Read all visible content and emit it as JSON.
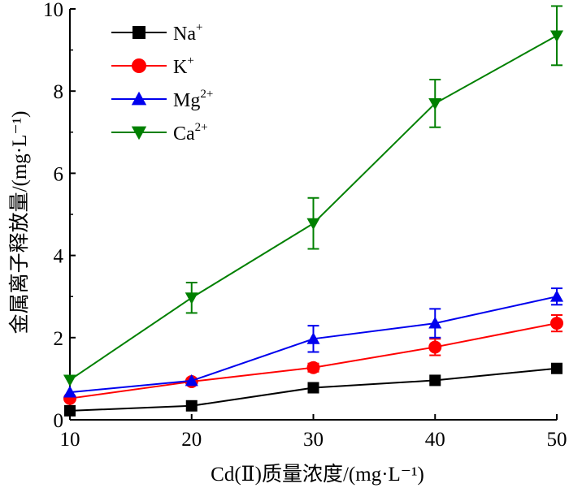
{
  "chart_data": {
    "type": "line",
    "xlabel": "Cd(Ⅱ)质量浓度/(mg·L⁻¹)",
    "ylabel": "金属离子释放量/(mg·L⁻¹)",
    "x": [
      10,
      20,
      30,
      40,
      50
    ],
    "xlim": [
      10,
      50
    ],
    "ylim": [
      0,
      10
    ],
    "xticks": [
      10,
      20,
      30,
      40,
      50
    ],
    "yticks": [
      0,
      2,
      4,
      6,
      8,
      10
    ],
    "grid": false,
    "legend_position": "top-left",
    "series": [
      {
        "name": "Na+",
        "base": "Na",
        "sup": "+",
        "color": "#000000",
        "marker": "square",
        "values": [
          0.22,
          0.34,
          0.78,
          0.96,
          1.25
        ],
        "errors": [
          0,
          0,
          0,
          0,
          0
        ]
      },
      {
        "name": "K+",
        "base": "K",
        "sup": "+",
        "color": "#ff0000",
        "marker": "circle",
        "values": [
          0.52,
          0.93,
          1.27,
          1.77,
          2.35
        ],
        "errors": [
          0,
          0,
          0.1,
          0.2,
          0.2
        ]
      },
      {
        "name": "Mg2+",
        "base": "Mg",
        "sup": "2+",
        "color": "#0000ee",
        "marker": "triangle-up",
        "values": [
          0.67,
          0.95,
          1.97,
          2.35,
          3.0
        ],
        "errors": [
          0,
          0,
          0.32,
          0.35,
          0.2
        ]
      },
      {
        "name": "Ca2+",
        "base": "Ca",
        "sup": "2+",
        "color": "#008000",
        "marker": "triangle-down",
        "values": [
          0.97,
          2.97,
          4.78,
          7.7,
          9.35
        ],
        "errors": [
          0,
          0.37,
          0.62,
          0.58,
          0.72
        ]
      }
    ]
  }
}
